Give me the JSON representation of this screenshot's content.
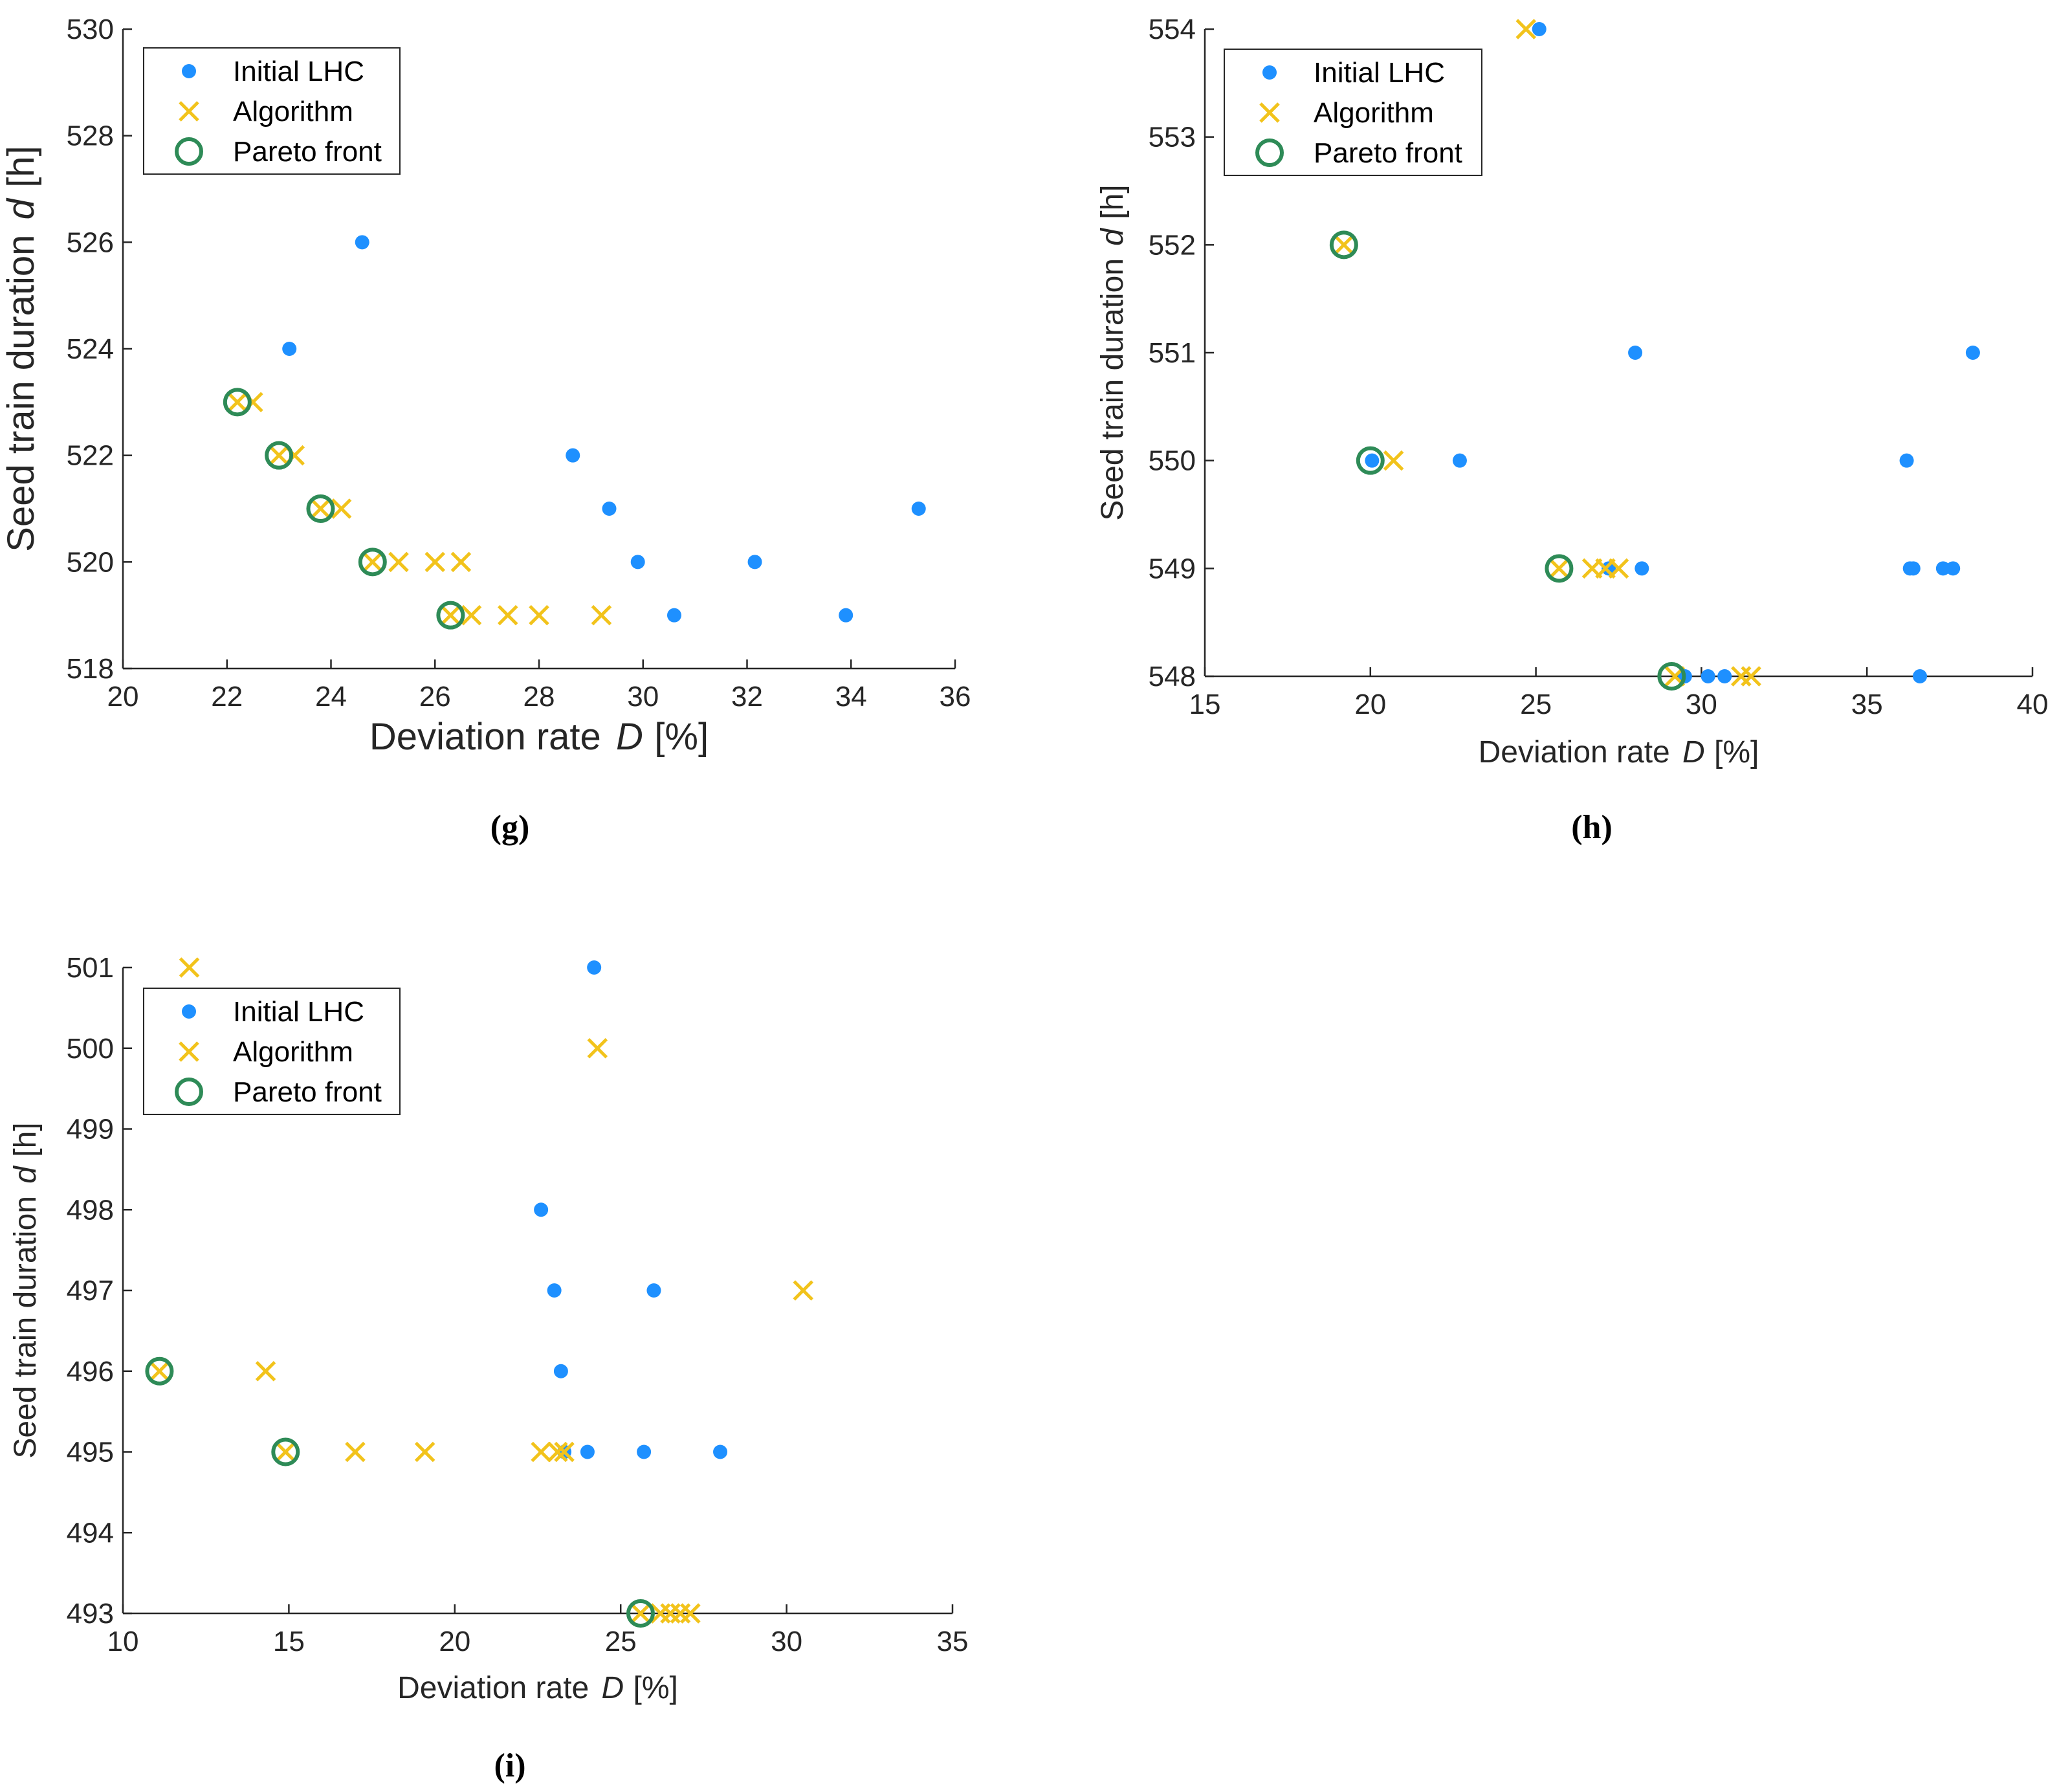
{
  "colors": {
    "lhc": "#1E90FF",
    "algorithm": "#F2C31B",
    "pareto": "#2E8B57",
    "axis": "#262626"
  },
  "legend_labels": [
    "Initial LHC",
    "Algorithm",
    "Pareto front"
  ],
  "chart_data": [
    {
      "type": "scatter",
      "panel": "g",
      "caption": "(g)",
      "xlabel_text": "Deviation rate",
      "xlabel_var": "D",
      "xlabel_unit": "[%]",
      "ylabel_text": "Seed train duration",
      "ylabel_var": "d",
      "ylabel_unit": "[h]",
      "xlim": [
        20,
        36
      ],
      "ylim": [
        518,
        530
      ],
      "xticks": [
        20,
        22,
        24,
        26,
        28,
        30,
        32,
        34,
        36
      ],
      "yticks": [
        518,
        520,
        522,
        524,
        526,
        528,
        530
      ],
      "legend_position": "top-left",
      "series": [
        {
          "name": "Initial LHC",
          "marker": "dot",
          "x": [
            24.6,
            23.2,
            28.65,
            29.35,
            29.9,
            32.15,
            30.6,
            33.9,
            35.3
          ],
          "y": [
            526,
            524,
            522,
            521,
            520,
            520,
            519,
            519,
            521
          ]
        },
        {
          "name": "Algorithm",
          "marker": "x",
          "x": [
            22.2,
            22.5,
            23.0,
            23.3,
            23.8,
            24.2,
            24.8,
            25.3,
            26.0,
            26.5,
            26.3,
            26.7,
            27.4,
            28.0,
            29.2
          ],
          "y": [
            523,
            523,
            522,
            522,
            521,
            521,
            520,
            520,
            520,
            520,
            519,
            519,
            519,
            519,
            519
          ]
        },
        {
          "name": "Pareto front",
          "marker": "circle",
          "x": [
            22.2,
            23.0,
            23.8,
            24.8,
            26.3
          ],
          "y": [
            523,
            522,
            521,
            520,
            519
          ]
        }
      ]
    },
    {
      "type": "scatter",
      "panel": "h",
      "caption": "(h)",
      "xlabel_text": "Deviation rate",
      "xlabel_var": "D",
      "xlabel_unit": "[%]",
      "ylabel_text": "Seed train duration",
      "ylabel_var": "d",
      "ylabel_unit": "[h]",
      "xlim": [
        15,
        40
      ],
      "ylim": [
        548,
        554
      ],
      "xticks": [
        15,
        20,
        25,
        30,
        35,
        40
      ],
      "yticks": [
        548,
        549,
        550,
        551,
        552,
        553,
        554
      ],
      "legend_position": "top-left",
      "series": [
        {
          "name": "Initial LHC",
          "marker": "dot",
          "x": [
            25.1,
            28.0,
            38.2,
            20.05,
            22.7,
            36.2,
            27.2,
            28.2,
            36.3,
            36.4,
            37.3,
            37.6,
            29.5,
            30.2,
            30.7,
            36.6
          ],
          "y": [
            554,
            551,
            551,
            550,
            550,
            550,
            549,
            549,
            549,
            549,
            549,
            549,
            548,
            548,
            548,
            548
          ]
        },
        {
          "name": "Algorithm",
          "marker": "x",
          "x": [
            24.7,
            19.2,
            20.7,
            25.7,
            26.7,
            27.1,
            27.5,
            29.2,
            31.2,
            31.5
          ],
          "y": [
            554,
            552,
            550,
            549,
            549,
            549,
            549,
            548,
            548,
            548
          ]
        },
        {
          "name": "Pareto front",
          "marker": "circle",
          "x": [
            19.2,
            20.0,
            25.7,
            29.1
          ],
          "y": [
            552,
            550,
            549,
            548
          ]
        }
      ]
    },
    {
      "type": "scatter",
      "panel": "i",
      "caption": "(i)",
      "xlabel_text": "Deviation rate",
      "xlabel_var": "D",
      "xlabel_unit": "[%]",
      "ylabel_text": "Seed train duration",
      "ylabel_var": "d",
      "ylabel_unit": "[h]",
      "xlim": [
        10,
        35
      ],
      "ylim": [
        493,
        501
      ],
      "xticks": [
        10,
        15,
        20,
        25,
        30,
        35
      ],
      "yticks": [
        493,
        494,
        495,
        496,
        497,
        498,
        499,
        500,
        501
      ],
      "legend_position": "top-left",
      "series": [
        {
          "name": "Initial LHC",
          "marker": "dot",
          "x": [
            24.2,
            22.6,
            23.0,
            26.0,
            23.2,
            23.3,
            24.0,
            25.7,
            28.0
          ],
          "y": [
            501,
            498,
            497,
            497,
            496,
            495,
            495,
            495,
            495
          ]
        },
        {
          "name": "Algorithm",
          "marker": "x",
          "x": [
            12.0,
            24.3,
            30.5,
            11.1,
            14.3,
            14.9,
            17.0,
            19.1,
            22.6,
            23.1,
            23.3,
            25.6,
            26.2,
            26.5,
            26.8,
            27.1
          ],
          "y": [
            501,
            500,
            497,
            496,
            496,
            495,
            495,
            495,
            495,
            495,
            495,
            493,
            493,
            493,
            493,
            493
          ]
        },
        {
          "name": "Pareto front",
          "marker": "circle",
          "x": [
            11.1,
            14.9,
            25.6
          ],
          "y": [
            496,
            495,
            493
          ]
        }
      ]
    }
  ]
}
